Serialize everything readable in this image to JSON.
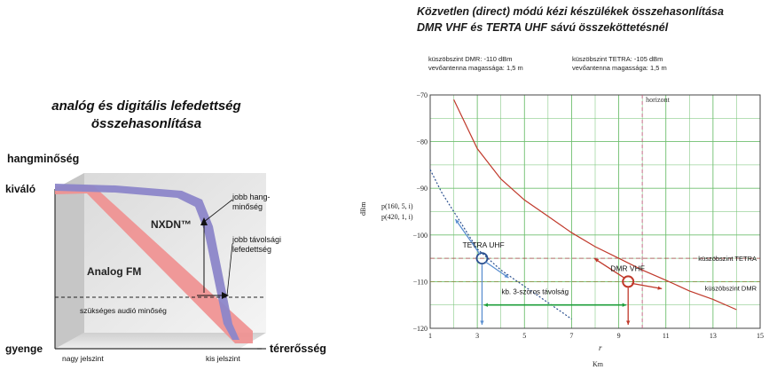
{
  "left_panel": {
    "title_line1": "analóg és digitális lefedettség",
    "title_line2": "összehasonlítása",
    "y_axis_label": "hangminőség",
    "y_top": "kiváló",
    "y_bottom": "gyenge",
    "x_axis_label": "térerősség",
    "x_left": "nagy jelszint",
    "x_right": "kis jelszint",
    "series_digital": "NXDN™",
    "series_analog": "Analog FM",
    "note_quality": "jobb hang-\nminőség",
    "note_coverage": "jobb távolsági\nlefedettség",
    "threshold_label": "szükséges audió minőség",
    "colors": {
      "digital": "#8c86c9",
      "analog": "#ef8f8f"
    }
  },
  "right_panel": {
    "title_line1": "Közvetlen (direct) módú kézi készülékek összehasonlítása",
    "title_line2": "DMR VHF és TERTA UHF sávú összeköttetésnél",
    "dmr_threshold_info": "küszöbszint DMR: -110 dBm",
    "dmr_antenna_info": "vevőantenna magassága:  1,5 m",
    "tetra_threshold_info": "küszöbszint TETRA: -105 dBm",
    "tetra_antenna_info": "vevőantenna magassága:  1,5 m",
    "label_tetra": "TETRA UHF",
    "label_dmr": "DMR VHF",
    "label_horizon": "horizont",
    "label_thr_tetra": "küszöbszint TETRA",
    "label_thr_dmr": "küszöbszint DMR",
    "label_range": "kb. 3-szoros távolság",
    "legend_1": "p(160, 5, i)",
    "legend_2": "p(420, 1, i)",
    "ylabel": "dBm",
    "xlabel_1": "r",
    "xlabel_2": "Km",
    "colors": {
      "dmr": "#c0392b",
      "tetra": "#2b4f8f",
      "grid": "#6fbf6f",
      "green_arrow": "#1e9e3a"
    }
  },
  "chart_data": [
    {
      "type": "line",
      "title": "analóg és digitális lefedettség összehasonlítása",
      "xlabel": "térerősség",
      "ylabel": "hangminőség",
      "x_categories": [
        "nagy jelszint",
        "kis jelszint"
      ],
      "y_categories": [
        "kiváló",
        "gyenge"
      ],
      "series": [
        {
          "name": "NXDN™",
          "x": [
            0,
            0.3,
            0.55,
            0.7,
            0.82,
            0.88,
            0.95
          ],
          "y": [
            0.97,
            0.95,
            0.9,
            0.82,
            0.6,
            0.3,
            0.0
          ]
        },
        {
          "name": "Analog FM",
          "x": [
            0,
            0.1,
            0.4,
            0.7,
            0.95
          ],
          "y": [
            0.97,
            0.95,
            0.65,
            0.32,
            0.0
          ]
        }
      ],
      "annotations": [
        "jobb hang-minőség",
        "jobb távolsági lefedettség",
        "szükséges audió minőség"
      ]
    },
    {
      "type": "line",
      "title": "Közvetlen (direct) módú kézi készülékek összehasonlítása DMR VHF és TERTA UHF sávú összeköttetésnél",
      "xlabel": "Km",
      "ylabel": "dBm",
      "xlim": [
        1,
        15
      ],
      "ylim": [
        -120,
        -70
      ],
      "x_ticks": [
        1,
        3,
        5,
        7,
        9,
        11,
        13,
        15
      ],
      "y_ticks": [
        -70,
        -80,
        -90,
        -100,
        -110,
        -120
      ],
      "grid": true,
      "series": [
        {
          "name": "p(160, 5, i)",
          "x": [
            2.0,
            3.0,
            4.0,
            5.0,
            6.0,
            7.0,
            8.0,
            9.0,
            10.0,
            11.0,
            12.0,
            13.0,
            14.0
          ],
          "y": [
            -71.0,
            -81.5,
            -88.0,
            -92.5,
            -96.0,
            -99.5,
            -102.5,
            -105.0,
            -107.5,
            -109.7,
            -112.0,
            -113.8,
            -116.0
          ]
        },
        {
          "name": "p(420, 1, i)",
          "x": [
            1.0,
            1.5,
            2.0,
            2.5,
            3.0,
            4.0,
            5.0,
            6.0,
            7.0
          ],
          "y": [
            -86.0,
            -91.0,
            -95.0,
            -99.0,
            -103.0,
            -107.5,
            -111.0,
            -114.5,
            -118.0
          ]
        }
      ],
      "reference_lines": [
        {
          "label": "küszöbszint TETRA",
          "y": -105
        },
        {
          "label": "küszöbszint DMR",
          "y": -110
        },
        {
          "label": "horizont",
          "x": 10
        }
      ],
      "markers": [
        {
          "label": "TETRA UHF",
          "x": 3.2,
          "y": -105
        },
        {
          "label": "DMR VHF",
          "x": 9.4,
          "y": -110
        }
      ],
      "annotations": [
        "kb. 3-szoros távolság"
      ]
    }
  ]
}
